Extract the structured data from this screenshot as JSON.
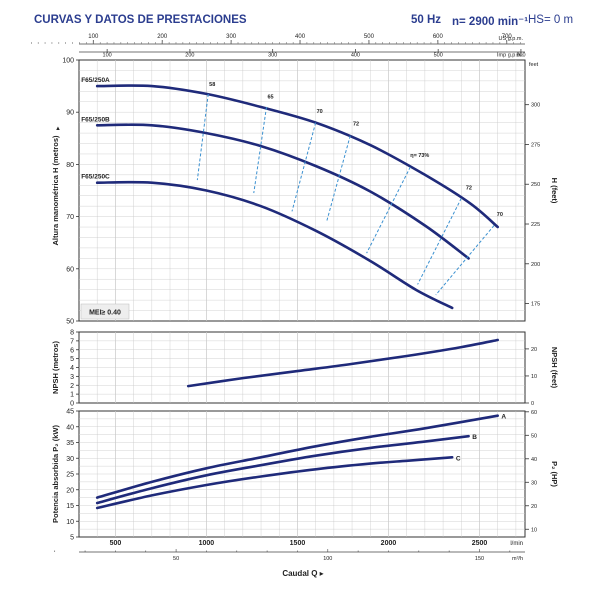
{
  "header": {
    "title": "CURVAS Y DATOS DE PRESTACIONES",
    "freq": "50 Hz",
    "speed": "n= 2900 min⁻¹",
    "hs": "HS= 0 m"
  },
  "colors": {
    "curve": "#1f2a7a",
    "header": "#2b3d8f",
    "iso": "#3a90d0",
    "grid": "#c8c8c8",
    "panel": "#f4f4f4"
  },
  "chart_data": [
    {
      "type": "line",
      "title": "Head curves",
      "ylabel": "Altura manométrica H (metros)",
      "ylabel_right": "H (feet)",
      "ylim": [
        50,
        100
      ],
      "yticks": [
        50,
        60,
        70,
        80,
        90,
        100
      ],
      "yticks_right": [
        175,
        200,
        225,
        250,
        275,
        300
      ],
      "x_unit": "l/min",
      "xlim": [
        300,
        2750
      ],
      "series": [
        {
          "name": "F65/250A",
          "x": [
            400,
            700,
            1000,
            1300,
            1600,
            1900,
            2200,
            2450,
            2600
          ],
          "values": [
            95,
            95,
            93.5,
            91,
            88,
            83.7,
            78,
            72.5,
            68
          ]
        },
        {
          "name": "F65/250B",
          "x": [
            400,
            700,
            1000,
            1300,
            1600,
            1900,
            2200,
            2440
          ],
          "values": [
            87.5,
            87.5,
            86,
            83.5,
            79.7,
            74.8,
            68.3,
            62
          ]
        },
        {
          "name": "F65/250C",
          "x": [
            400,
            700,
            1000,
            1300,
            1600,
            1900,
            2150,
            2350
          ],
          "values": [
            76.5,
            76.5,
            75,
            72,
            67.3,
            61.5,
            56,
            52.5
          ]
        }
      ],
      "efficiency_labels": [
        "58",
        "65",
        "70",
        "72",
        "η= 73%",
        "72",
        "70"
      ],
      "iso_efficiency": [
        {
          "label": "58",
          "x": [
            1010,
            950
          ],
          "values": [
            93.5,
            77
          ]
        },
        {
          "label": "65",
          "x": [
            1330,
            1260
          ],
          "values": [
            91,
            74.5
          ]
        },
        {
          "label": "70",
          "x": [
            1600,
            1470
          ],
          "values": [
            88,
            71
          ]
        },
        {
          "label": "72",
          "x": [
            1790,
            1660
          ],
          "values": [
            85.5,
            69
          ]
        },
        {
          "label": "73",
          "x": [
            2120,
            1880
          ],
          "values": [
            79.5,
            63
          ]
        },
        {
          "label": "72",
          "x": [
            2400,
            2160
          ],
          "values": [
            73.5,
            57
          ]
        },
        {
          "label": "70",
          "x": [
            2580,
            2260
          ],
          "values": [
            68.3,
            55
          ]
        }
      ],
      "mei_label": "MEI≥ 0.40"
    },
    {
      "type": "line",
      "title": "NPSH",
      "ylabel": "NPSH (metros)",
      "ylabel_right": "NPSH (feet)",
      "ylim": [
        0,
        8
      ],
      "yticks": [
        0,
        1,
        2,
        3,
        4,
        5,
        6,
        7,
        8
      ],
      "yticks_right": [
        0,
        10,
        20
      ],
      "series": [
        {
          "name": "NPSH",
          "x": [
            900,
            1200,
            1500,
            1800,
            2100,
            2400,
            2600
          ],
          "values": [
            1.9,
            2.8,
            3.6,
            4.4,
            5.3,
            6.3,
            7.1
          ]
        }
      ]
    },
    {
      "type": "line",
      "title": "Power",
      "ylabel": "Potencia absorbida P₂ (kW)",
      "ylabel_right": "P₂ (HP)",
      "ylim": [
        5,
        45
      ],
      "yticks": [
        5,
        10,
        15,
        20,
        25,
        30,
        35,
        40,
        45
      ],
      "yticks_right": [
        10,
        20,
        30,
        40,
        50,
        60
      ],
      "xlabel": "Caudal Q",
      "xticks": [
        500,
        1000,
        1500,
        2000,
        2500
      ],
      "x_unit": "l/min",
      "series": [
        {
          "name": "A",
          "x": [
            400,
            700,
            1000,
            1300,
            1600,
            1900,
            2200,
            2600
          ],
          "values": [
            17.5,
            22.5,
            26.8,
            30.3,
            33.8,
            36.8,
            39.5,
            43.5
          ]
        },
        {
          "name": "B",
          "x": [
            400,
            700,
            1000,
            1300,
            1600,
            1900,
            2200,
            2440
          ],
          "values": [
            15.8,
            20.5,
            24.6,
            27.8,
            30.8,
            33.3,
            35.3,
            37
          ]
        },
        {
          "name": "C",
          "x": [
            400,
            700,
            1000,
            1300,
            1600,
            1900,
            2100,
            2350
          ],
          "values": [
            14.2,
            18.2,
            21.5,
            24.2,
            26.5,
            28.3,
            29.2,
            30.3
          ]
        }
      ]
    }
  ],
  "top_axis": {
    "us_ticks": [
      "100",
      "200",
      "300",
      "400",
      "500",
      "600",
      "700"
    ],
    "us_unit": "US g.p.m.",
    "imp_ticks": [
      "100",
      "200",
      "300",
      "400",
      "500",
      "600"
    ],
    "imp_unit": "Imp g.p.m."
  },
  "bottom_axis": {
    "m3h_ticks": [
      "50",
      "100",
      "150"
    ],
    "m3h_unit": "m³/h",
    "lmin_unit": "l/min",
    "feet_unit": "feet"
  }
}
